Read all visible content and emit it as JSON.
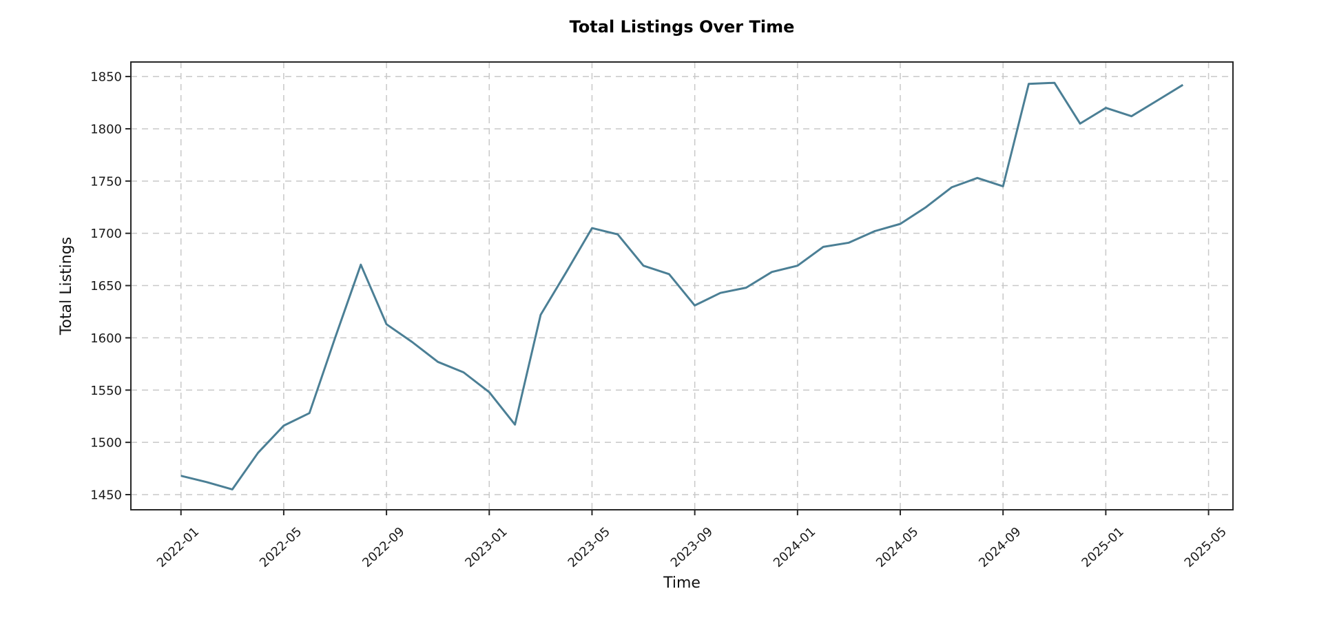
{
  "chart_data": {
    "type": "line",
    "title": "Total Listings Over Time",
    "xlabel": "Time",
    "ylabel": "Total Listings",
    "x": [
      "2022-01",
      "2022-02",
      "2022-03",
      "2022-04",
      "2022-05",
      "2022-06",
      "2022-07",
      "2022-08",
      "2022-09",
      "2022-10",
      "2022-11",
      "2022-12",
      "2023-01",
      "2023-02",
      "2023-03",
      "2023-04",
      "2023-05",
      "2023-06",
      "2023-07",
      "2023-08",
      "2023-09",
      "2023-10",
      "2023-11",
      "2023-12",
      "2024-01",
      "2024-02",
      "2024-03",
      "2024-04",
      "2024-05",
      "2024-06",
      "2024-07",
      "2024-08",
      "2024-09",
      "2024-10",
      "2024-11",
      "2024-12",
      "2025-01",
      "2025-02",
      "2025-03",
      "2025-04"
    ],
    "values": [
      1468,
      1462,
      1455,
      1490,
      1516,
      1528,
      1600,
      1670,
      1613,
      1596,
      1577,
      1567,
      1548,
      1517,
      1622,
      1663,
      1705,
      1699,
      1669,
      1661,
      1631,
      1643,
      1648,
      1663,
      1669,
      1687,
      1691,
      1702,
      1709,
      1725,
      1744,
      1753,
      1745,
      1843,
      1844,
      1805,
      1820,
      1812,
      1827,
      1842
    ],
    "x_tick_labels": [
      "2022-01",
      "2022-05",
      "2022-09",
      "2023-01",
      "2023-05",
      "2023-09",
      "2024-01",
      "2024-05",
      "2024-09",
      "2025-01",
      "2025-05"
    ],
    "x_tick_positions": [
      0,
      4,
      8,
      12,
      16,
      20,
      24,
      28,
      32,
      36,
      40
    ],
    "y_ticks": [
      1450,
      1500,
      1550,
      1600,
      1650,
      1700,
      1750,
      1800,
      1850
    ],
    "xlim": [
      -1.95,
      40.95
    ],
    "ylim": [
      1435.5,
      1863.9
    ],
    "grid": true,
    "grid_style": "dashed",
    "legend": false,
    "x_tick_rotation_deg": -43,
    "colors": {
      "line": "#4b7f95",
      "grid": "#c8c8c8",
      "spine": "#262626",
      "text": "#1a1a1a",
      "background": "#ffffff"
    }
  }
}
